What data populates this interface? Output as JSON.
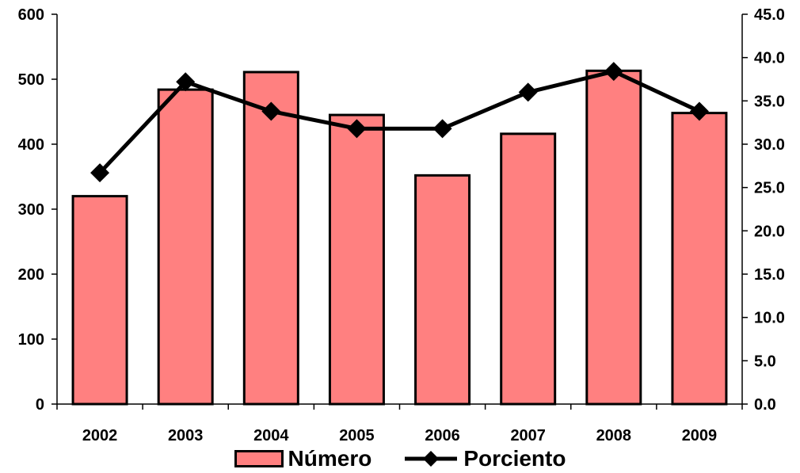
{
  "chart_data": {
    "type": "bar",
    "categories": [
      "2002",
      "2003",
      "2004",
      "2005",
      "2006",
      "2007",
      "2008",
      "2009"
    ],
    "series": [
      {
        "name": "Número",
        "type": "bar",
        "axis": "left",
        "values": [
          320,
          484,
          511,
          445,
          352,
          416,
          513,
          448
        ]
      },
      {
        "name": "Porciento",
        "type": "line",
        "axis": "right",
        "marker": "diamond",
        "values": [
          26.7,
          37.2,
          33.8,
          31.8,
          31.8,
          36.0,
          38.4,
          33.8
        ]
      }
    ],
    "left_axis": {
      "ylim": [
        0,
        600
      ],
      "ticks": [
        "0",
        "100",
        "200",
        "300",
        "400",
        "500",
        "600"
      ]
    },
    "right_axis": {
      "ylim": [
        0,
        45
      ],
      "ticks": [
        "0.0",
        "5.0",
        "10.0",
        "15.0",
        "20.0",
        "25.0",
        "30.0",
        "35.0",
        "40.0",
        "45.0"
      ]
    },
    "legend_position": "bottom",
    "grid": false
  },
  "colors": {
    "bar_fill": "#FF8080",
    "outline": "#000000",
    "line": "#000000"
  },
  "legend": {
    "bar_label": "Número",
    "line_label": "Porciento"
  }
}
